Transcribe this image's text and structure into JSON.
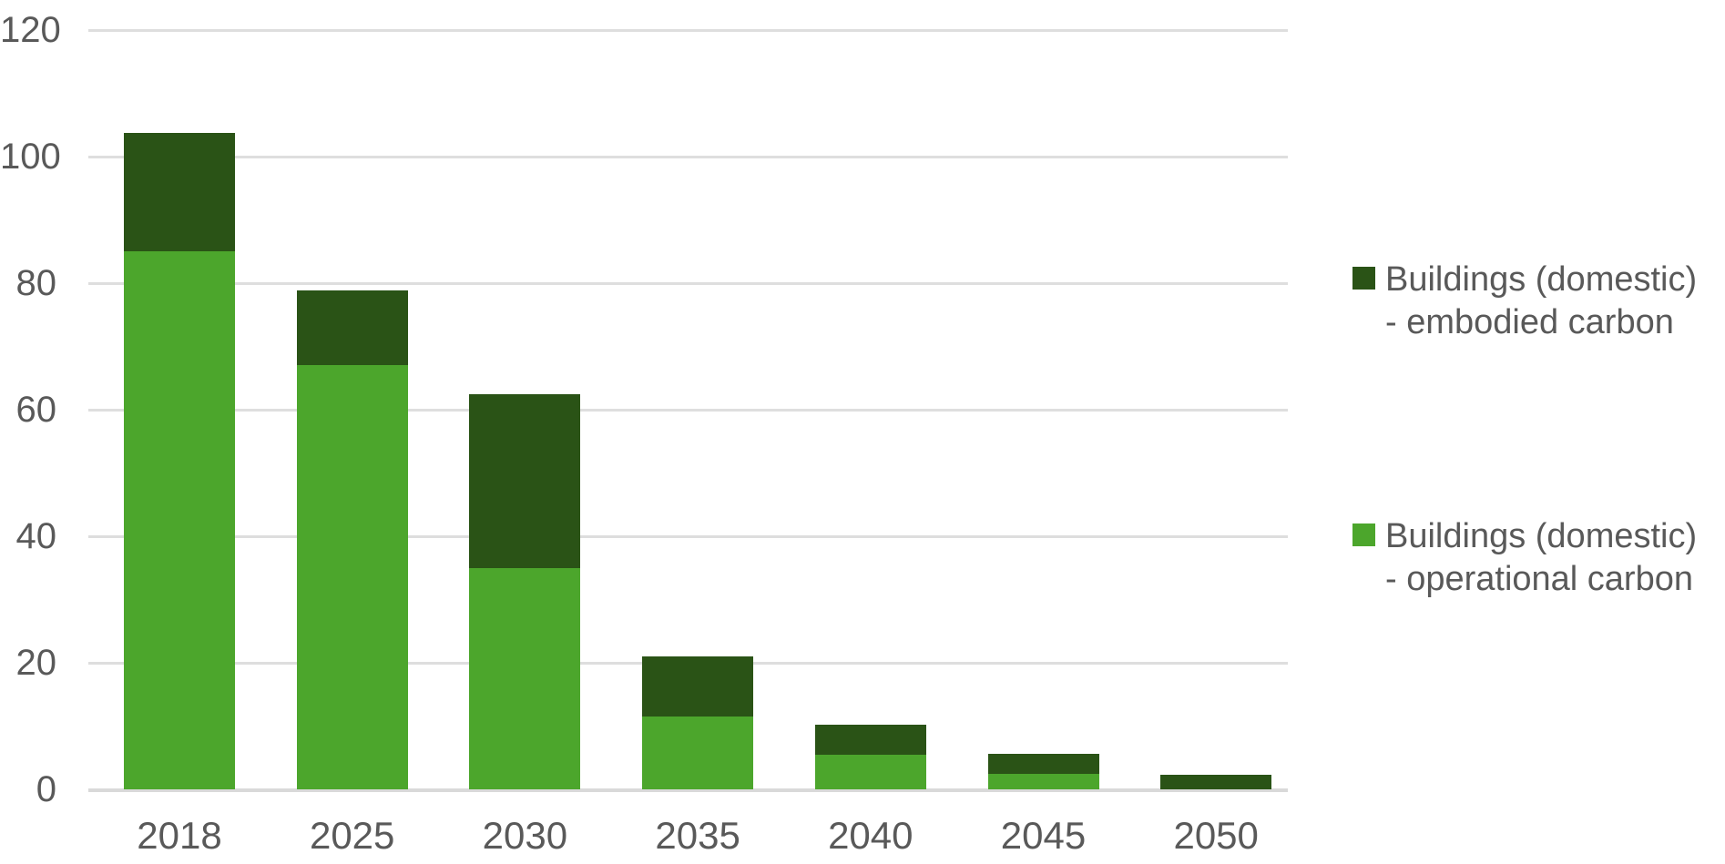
{
  "chart_data": {
    "type": "bar",
    "stacked": true,
    "title": "",
    "xlabel": "",
    "ylabel": "",
    "categories": [
      "2018",
      "2025",
      "2030",
      "2035",
      "2040",
      "2045",
      "2050"
    ],
    "series": [
      {
        "name": "Buildings (domestic) - operational carbon",
        "color": "#4CA62C",
        "values": [
          85,
          67,
          35,
          11.5,
          5.5,
          2.5,
          0
        ]
      },
      {
        "name": "Buildings (domestic) - embodied carbon",
        "color": "#2A5316",
        "values": [
          18.7,
          11.8,
          27.4,
          9.5,
          4.7,
          3.1,
          2.3
        ]
      }
    ],
    "ylim": [
      0,
      120
    ],
    "yticks": [
      0,
      20,
      40,
      60,
      80,
      100,
      120
    ],
    "grid": true,
    "legend_position": "right",
    "axis_text_color": "#595959",
    "gridline_color": "#dedede"
  }
}
